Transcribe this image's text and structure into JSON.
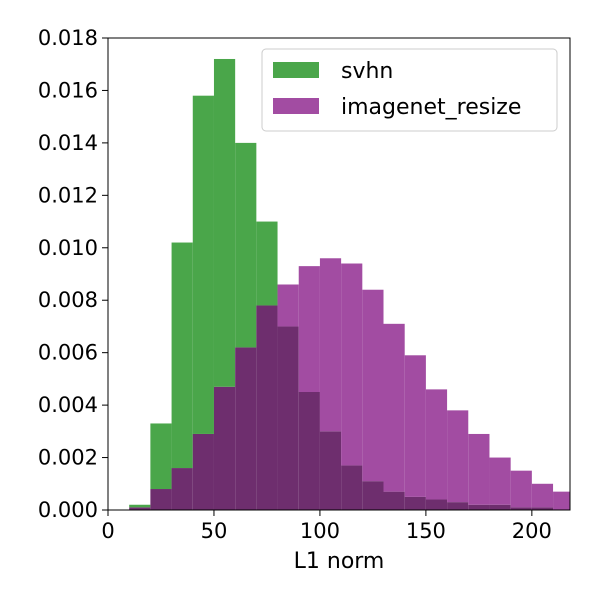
{
  "chart_data": {
    "type": "bar",
    "xlabel": "L1 norm",
    "ylabel": "",
    "xlim": [
      0,
      218
    ],
    "ylim": [
      0,
      0.018
    ],
    "bin_edges": [
      0,
      10,
      20,
      30,
      40,
      50,
      60,
      70,
      80,
      90,
      100,
      110,
      120,
      130,
      140,
      150,
      160,
      170,
      180,
      190,
      200,
      210,
      220
    ],
    "x_ticks": [
      "0",
      "50",
      "100",
      "150",
      "200"
    ],
    "x_tick_values": [
      0,
      50,
      100,
      150,
      200
    ],
    "y_ticks": [
      "0.000",
      "0.002",
      "0.004",
      "0.006",
      "0.008",
      "0.010",
      "0.012",
      "0.014",
      "0.016",
      "0.018"
    ],
    "y_tick_values": [
      0,
      0.002,
      0.004,
      0.006,
      0.008,
      0.01,
      0.012,
      0.014,
      0.016,
      0.018
    ],
    "legend_position": "top-right",
    "grid": false,
    "overlap_color": "#6e2e6e",
    "series": [
      {
        "name": "svhn",
        "color": "#4aa64a",
        "values": [
          0.0,
          0.0002,
          0.0033,
          0.0102,
          0.0158,
          0.0172,
          0.014,
          0.011,
          0.007,
          0.0045,
          0.003,
          0.0017,
          0.0011,
          0.0007,
          0.0005,
          0.0004,
          0.0003,
          0.0002,
          0.0002,
          0.0001,
          0.0001,
          0.0
        ]
      },
      {
        "name": "imagenet_resize",
        "color": "#a24ca2",
        "values": [
          0.0,
          0.0001,
          0.0008,
          0.0016,
          0.0029,
          0.0047,
          0.0062,
          0.0078,
          0.0086,
          0.0093,
          0.0096,
          0.0094,
          0.0084,
          0.0071,
          0.0059,
          0.0046,
          0.0038,
          0.0029,
          0.002,
          0.0015,
          0.001,
          0.0007
        ]
      }
    ]
  }
}
